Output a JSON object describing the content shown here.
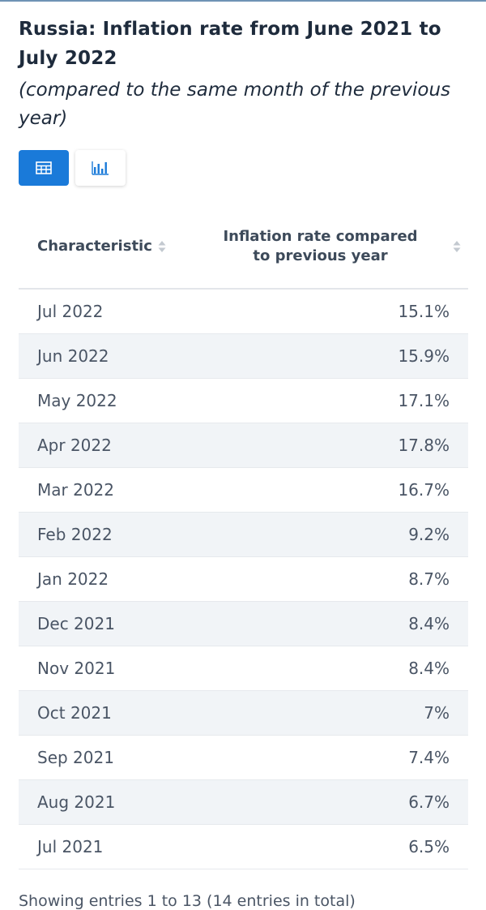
{
  "header": {
    "title": "Russia: Inflation rate from June 2021 to July 2022",
    "subtitle": "(compared to the same month of the previous year)"
  },
  "view_toggle": {
    "active": "table",
    "icons": [
      "table-icon",
      "bar-chart-icon"
    ],
    "active_color": "#1a7ad9"
  },
  "chart_data": {
    "type": "table",
    "columns": [
      "Characteristic",
      "Inflation rate compared to previous year"
    ],
    "rows": [
      {
        "label": "Jul 2022",
        "display": "15.1%",
        "value": 15.1
      },
      {
        "label": "Jun 2022",
        "display": "15.9%",
        "value": 15.9
      },
      {
        "label": "May 2022",
        "display": "17.1%",
        "value": 17.1
      },
      {
        "label": "Apr 2022",
        "display": "17.8%",
        "value": 17.8
      },
      {
        "label": "Mar 2022",
        "display": "16.7%",
        "value": 16.7
      },
      {
        "label": "Feb 2022",
        "display": "9.2%",
        "value": 9.2
      },
      {
        "label": "Jan 2022",
        "display": "8.7%",
        "value": 8.7
      },
      {
        "label": "Dec 2021",
        "display": "8.4%",
        "value": 8.4
      },
      {
        "label": "Nov 2021",
        "display": "8.4%",
        "value": 8.4
      },
      {
        "label": "Oct 2021",
        "display": "7%",
        "value": 7
      },
      {
        "label": "Sep 2021",
        "display": "7.4%",
        "value": 7.4
      },
      {
        "label": "Aug 2021",
        "display": "6.7%",
        "value": 6.7
      },
      {
        "label": "Jul 2021",
        "display": "6.5%",
        "value": 6.5
      }
    ]
  },
  "footer": {
    "entries_text": "Showing entries 1 to 13 (14 entries in total)"
  }
}
